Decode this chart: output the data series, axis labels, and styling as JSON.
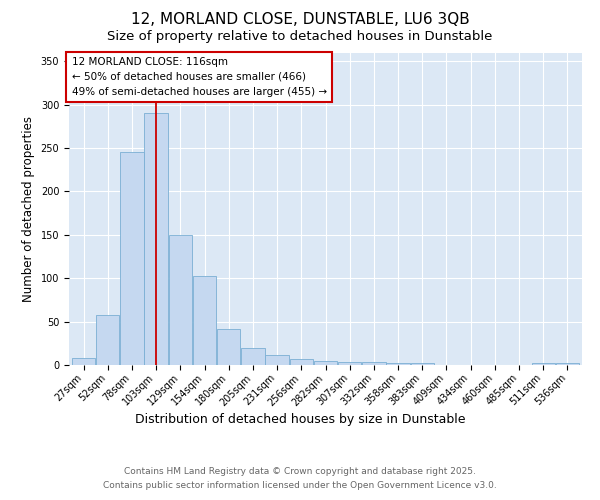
{
  "title": "12, MORLAND CLOSE, DUNSTABLE, LU6 3QB",
  "subtitle": "Size of property relative to detached houses in Dunstable",
  "xlabel": "Distribution of detached houses by size in Dunstable",
  "ylabel": "Number of detached properties",
  "categories": [
    "27sqm",
    "52sqm",
    "78sqm",
    "103sqm",
    "129sqm",
    "154sqm",
    "180sqm",
    "205sqm",
    "231sqm",
    "256sqm",
    "282sqm",
    "307sqm",
    "332sqm",
    "358sqm",
    "383sqm",
    "409sqm",
    "434sqm",
    "460sqm",
    "485sqm",
    "511sqm",
    "536sqm"
  ],
  "values": [
    8,
    58,
    245,
    290,
    150,
    103,
    42,
    20,
    12,
    7,
    5,
    3,
    4,
    2,
    2,
    0,
    0,
    0,
    0,
    2,
    2
  ],
  "bar_color": "#c5d8f0",
  "bar_edge_color": "#7aafd4",
  "red_line_x": 3.0,
  "annotation_line1": "12 MORLAND CLOSE: 116sqm",
  "annotation_line2": "← 50% of detached houses are smaller (466)",
  "annotation_line3": "49% of semi-detached houses are larger (455) →",
  "ylim": [
    0,
    360
  ],
  "yticks": [
    0,
    50,
    100,
    150,
    200,
    250,
    300,
    350
  ],
  "footer_line1": "Contains HM Land Registry data © Crown copyright and database right 2025.",
  "footer_line2": "Contains public sector information licensed under the Open Government Licence v3.0.",
  "bg_color": "#dce8f5",
  "fig_bg_color": "#ffffff",
  "title_fontsize": 11,
  "subtitle_fontsize": 9.5,
  "tick_fontsize": 7,
  "ylabel_fontsize": 8.5,
  "xlabel_fontsize": 9,
  "annotation_fontsize": 7.5,
  "footer_fontsize": 6.5
}
